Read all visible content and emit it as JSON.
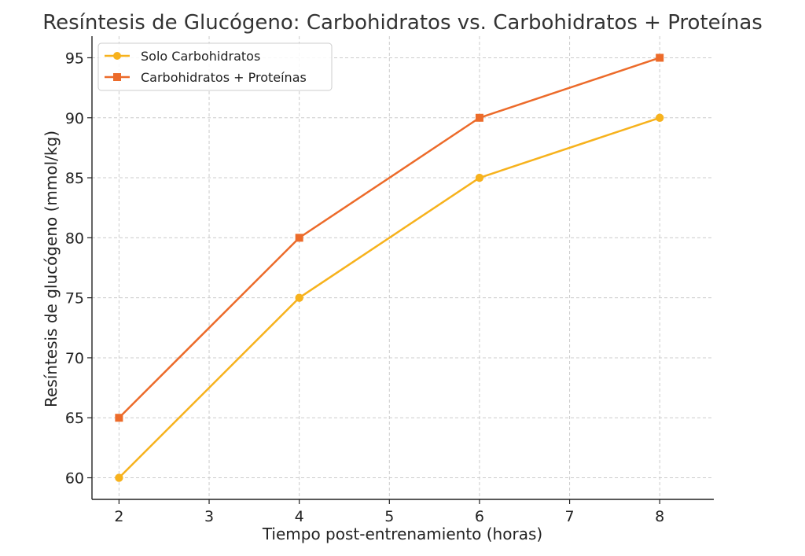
{
  "chart_data": {
    "type": "line",
    "title": "Resíntesis de Glucógeno: Carbohidratos vs. Carbohidratos + Proteínas",
    "xlabel": "Tiempo post-entrenamiento (horas)",
    "ylabel": "Resíntesis de glucógeno (mmol/kg)",
    "xlim": [
      1.7,
      8.6
    ],
    "ylim": [
      58.2,
      96.8
    ],
    "xticks": [
      2,
      3,
      4,
      5,
      6,
      7,
      8
    ],
    "yticks": [
      60,
      65,
      70,
      75,
      80,
      85,
      90,
      95
    ],
    "grid": true,
    "legend_position": "top-left",
    "series": [
      {
        "name": "Solo Carbohidratos",
        "color": "#f7b21d",
        "marker": "circle",
        "x": [
          2,
          4,
          6,
          8
        ],
        "y": [
          60,
          75,
          85,
          90
        ]
      },
      {
        "name": "Carbohidratos + Proteínas",
        "color": "#ec6b2a",
        "marker": "square",
        "x": [
          2,
          4,
          6,
          8
        ],
        "y": [
          65,
          80,
          90,
          95
        ]
      }
    ]
  }
}
